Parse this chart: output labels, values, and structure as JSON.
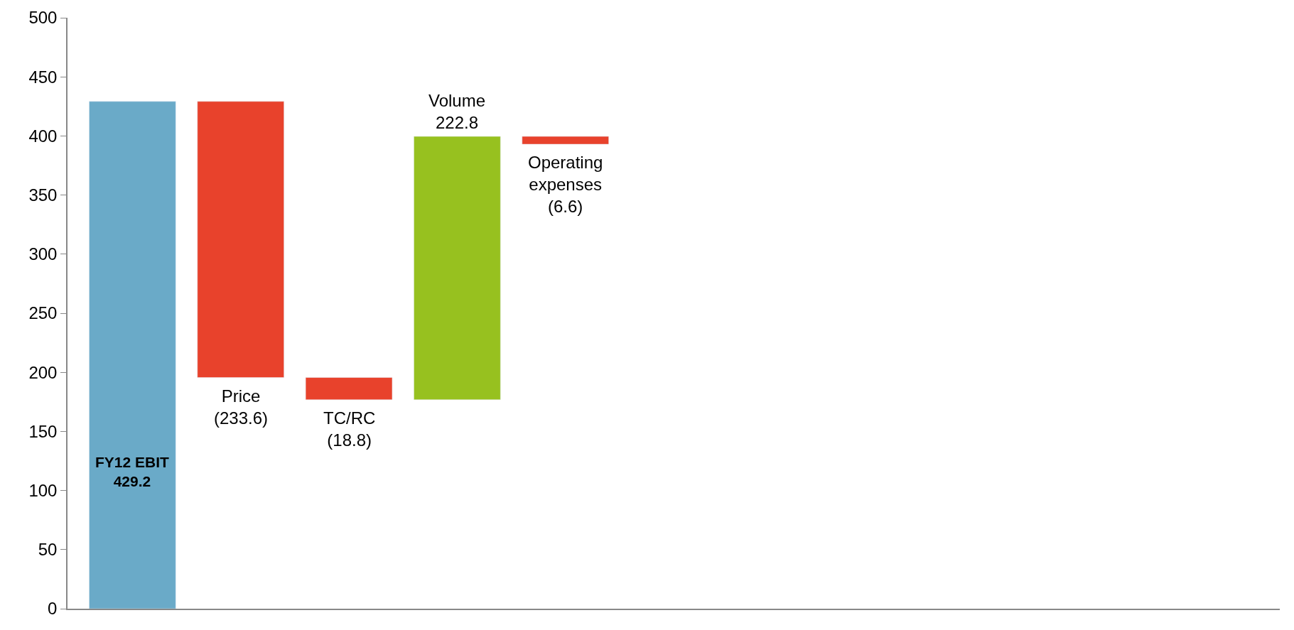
{
  "chart_data": {
    "type": "bar",
    "categories": [
      "FY12 EBIT",
      "Price",
      "TC/RC",
      "Volume",
      "Operating expenses",
      null,
      null,
      null,
      null,
      null,
      null
    ],
    "values": [
      429.2,
      -233.6,
      -18.8,
      222.8,
      -6.6,
      null,
      null,
      null,
      null,
      null,
      null
    ],
    "base": [
      0,
      429.2,
      195.6,
      176.8,
      399.6,
      null,
      null,
      null,
      null,
      null,
      null
    ],
    "colors": [
      "#6aaac8",
      "#e8422c",
      "#e8422c",
      "#97c11f",
      "#e8422c",
      null,
      null,
      null,
      null,
      null,
      null
    ],
    "value_labels": [
      "429.2",
      "(233.6)",
      "(18.8)",
      "222.8",
      "(6.6)",
      null,
      null,
      null,
      null,
      null,
      null
    ],
    "ylim": [
      0,
      500
    ],
    "yticks": [
      0,
      50,
      100,
      150,
      200,
      250,
      300,
      350,
      400,
      450,
      500
    ],
    "tick_labels": "y",
    "legend": false
  }
}
